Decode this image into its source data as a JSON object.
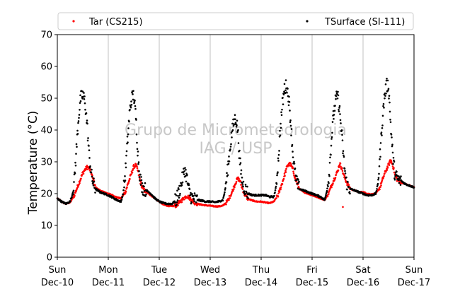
{
  "chart_data": {
    "type": "scatter",
    "title": "",
    "xlabel": "",
    "ylabel": "Temperature (°C)",
    "ylim": [
      0,
      70
    ],
    "yticks": [
      0,
      10,
      20,
      30,
      40,
      50,
      60,
      70
    ],
    "xlim": [
      "2017-12-10 00:00",
      "2017-12-17 00:00"
    ],
    "xtick_labels": [
      {
        "day": "Sun",
        "date": "Dec-10"
      },
      {
        "day": "Mon",
        "date": "Dec-11"
      },
      {
        "day": "Tue",
        "date": "Dec-12"
      },
      {
        "day": "Wed",
        "date": "Dec-13"
      },
      {
        "day": "Thu",
        "date": "Dec-14"
      },
      {
        "day": "Fri",
        "date": "Dec-15"
      },
      {
        "day": "Sat",
        "date": "Dec-16"
      },
      {
        "day": "Sun",
        "date": "Dec-17"
      }
    ],
    "grid": "vertical",
    "legend_placement": "top",
    "watermark": [
      "Grupo de Micrometeorologia",
      "IAG / USP"
    ],
    "series": [
      {
        "name": "Tar (CS215)",
        "color": "#ff0000",
        "daily_profile": [
          {
            "day": 0,
            "hours": [
              0,
              2,
              4,
              6,
              8,
              10,
              12,
              13,
              14,
              15,
              16,
              17,
              18,
              20,
              22
            ],
            "values": [
              18.5,
              17.5,
              16.8,
              17.2,
              19.5,
              23,
              26.5,
              27.5,
              28.3,
              28.0,
              26.5,
              24.0,
              22.0,
              21.0,
              20.5
            ]
          },
          {
            "day": 1,
            "hours": [
              0,
              2,
              4,
              6,
              8,
              10,
              12,
              13,
              14,
              15,
              16,
              17,
              18,
              20,
              22
            ],
            "values": [
              20.0,
              19.5,
              18.8,
              18.5,
              20.5,
              24.5,
              28.5,
              29.0,
              27.0,
              24.0,
              22.0,
              21.0,
              20.5,
              19.5,
              18.5
            ]
          },
          {
            "day": 2,
            "hours": [
              0,
              2,
              4,
              6,
              8,
              10,
              12,
              13,
              14,
              15,
              16,
              17,
              18,
              20,
              22
            ],
            "values": [
              17.5,
              16.5,
              16.2,
              16.0,
              16.3,
              17.5,
              18.8,
              19.3,
              18.8,
              18.2,
              17.5,
              17.0,
              16.8,
              16.5,
              16.3
            ]
          },
          {
            "day": 3,
            "hours": [
              0,
              2,
              4,
              6,
              8,
              10,
              12,
              13,
              14,
              15,
              16,
              17,
              18,
              20,
              22
            ],
            "values": [
              16.2,
              16.0,
              16.0,
              16.2,
              17.5,
              20.0,
              23.5,
              24.8,
              24.0,
              22.0,
              20.0,
              19.0,
              18.3,
              17.8,
              17.5
            ]
          },
          {
            "day": 4,
            "hours": [
              0,
              2,
              4,
              6,
              8,
              10,
              12,
              13,
              14,
              15,
              16,
              17,
              18,
              20,
              22
            ],
            "values": [
              17.5,
              17.2,
              17.0,
              17.5,
              19.5,
              23.5,
              28.0,
              29.5,
              29.0,
              27.5,
              25.0,
              23.0,
              21.5,
              20.5,
              20.0
            ]
          },
          {
            "day": 5,
            "hours": [
              0,
              2,
              4,
              6,
              8,
              10,
              12,
              13,
              14,
              15,
              16,
              17,
              18,
              20,
              22
            ],
            "values": [
              19.5,
              19.0,
              18.5,
              18.0,
              20.5,
              24.0,
              27.0,
              29.5,
              28.0,
              25.5,
              24.0,
              22.5,
              21.5,
              21.0,
              20.5
            ]
          },
          {
            "day": 6,
            "hours": [
              0,
              2,
              4,
              6,
              8,
              10,
              12,
              13,
              14,
              15,
              16,
              17,
              18,
              20,
              22
            ],
            "values": [
              20.5,
              20.0,
              19.8,
              20.0,
              22.0,
              26.0,
              29.0,
              30.5,
              29.0,
              26.0,
              24.5,
              24.0,
              23.5,
              23.0,
              22.5
            ]
          },
          {
            "day": 7,
            "hours": [
              0
            ],
            "values": [
              22.0
            ]
          }
        ],
        "outliers": [
          [
            5,
            14.5,
            15.8
          ]
        ]
      },
      {
        "name": "TSurface (SI-111)",
        "color": "#000000",
        "daily_profile": [
          {
            "day": 0,
            "hours": [
              0,
              2,
              4,
              6,
              7,
              8,
              9,
              10,
              11,
              12,
              13,
              14,
              15,
              16,
              17,
              18,
              20,
              22
            ],
            "values": [
              18.5,
              17.5,
              16.8,
              17.5,
              19.5,
              24,
              34,
              44,
              50,
              51,
              49,
              42,
              32,
              26,
              23,
              21.5,
              20.5,
              20.0
            ]
          },
          {
            "day": 1,
            "hours": [
              0,
              2,
              4,
              6,
              7,
              8,
              9,
              10,
              11,
              12,
              13,
              14,
              15,
              16,
              17,
              18,
              20,
              22
            ],
            "values": [
              19.5,
              18.8,
              18.0,
              17.5,
              20,
              26,
              36,
              45,
              50,
              51,
              44,
              32,
              25,
              22,
              21.5,
              21,
              20,
              18.5
            ]
          },
          {
            "day": 2,
            "hours": [
              0,
              2,
              4,
              6,
              8,
              10,
              11,
              12,
              13,
              14,
              15,
              16,
              17,
              18,
              20,
              22
            ],
            "values": [
              17.5,
              17.0,
              16.8,
              16.8,
              18,
              22,
              25,
              27.5,
              25,
              21,
              19,
              18.5,
              18.2,
              18,
              17.8,
              17.5
            ]
          },
          {
            "day": 3,
            "hours": [
              0,
              2,
              4,
              6,
              7,
              8,
              9,
              10,
              11,
              12,
              13,
              14,
              15,
              16,
              17,
              18,
              20,
              22
            ],
            "values": [
              17.5,
              17.3,
              17.5,
              18,
              21,
              26,
              32,
              38,
              42,
              44,
              40,
              30,
              24,
              22,
              21,
              20,
              19.5,
              19.5
            ]
          },
          {
            "day": 4,
            "hours": [
              0,
              2,
              4,
              6,
              7,
              8,
              9,
              10,
              11,
              12,
              13,
              14,
              15,
              16,
              17,
              18,
              20,
              22
            ],
            "values": [
              19.5,
              19.5,
              19.0,
              19,
              22,
              30,
              40,
              48,
              53,
              54,
              50,
              42,
              32,
              26,
              23,
              21.5,
              21,
              20.5
            ]
          },
          {
            "day": 5,
            "hours": [
              0,
              2,
              4,
              6,
              7,
              8,
              9,
              10,
              11,
              12,
              13,
              14,
              15,
              16,
              17,
              18,
              20,
              22
            ],
            "values": [
              20,
              19.5,
              19,
              18,
              21,
              26,
              36,
              44,
              49,
              51,
              46,
              38,
              30,
              24,
              22,
              21.5,
              21,
              20.5
            ]
          },
          {
            "day": 6,
            "hours": [
              0,
              2,
              4,
              6,
              7,
              8,
              9,
              10,
              11,
              12,
              13,
              14,
              15,
              16,
              17,
              18,
              20,
              22
            ],
            "values": [
              20,
              19.5,
              19.5,
              20,
              23,
              32,
              42,
              50,
              54,
              54,
              42,
              32,
              26,
              25,
              24,
              24,
              23,
              22.5
            ]
          },
          {
            "day": 7,
            "hours": [
              0
            ],
            "values": [
              22.0
            ]
          }
        ]
      }
    ]
  }
}
